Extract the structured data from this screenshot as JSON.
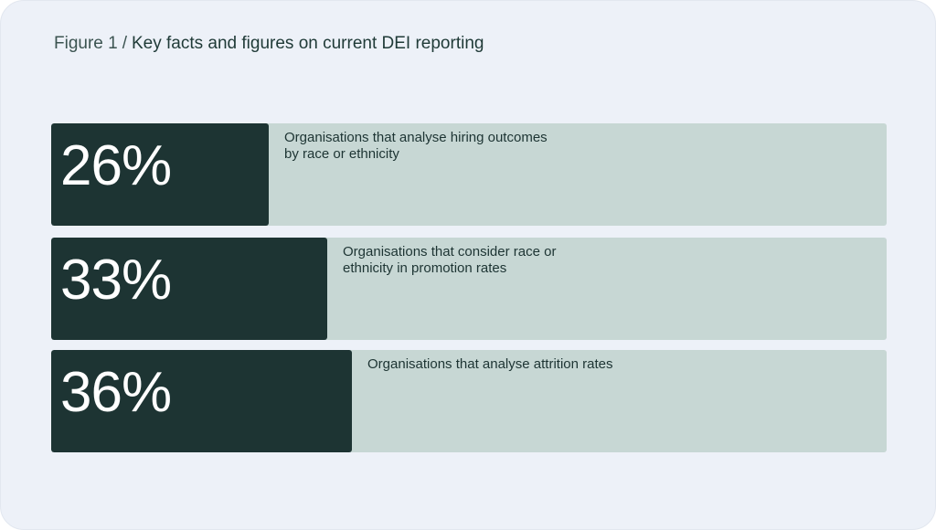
{
  "title": {
    "prefix": "Figure 1",
    "separator": "/",
    "text": "Key facts and figures on current DEI reporting"
  },
  "colors": {
    "background": "#edf1f8",
    "bar_fill": "#1d3433",
    "track_fill": "#c7d7d4",
    "text_dark": "#1d3433"
  },
  "chart_data": {
    "type": "bar",
    "orientation": "horizontal",
    "xlim": [
      0,
      100
    ],
    "items": [
      {
        "display": "26%",
        "value": 26,
        "label": "Organisations that analyse hiring outcomes by race or ethnicity"
      },
      {
        "display": "33%",
        "value": 33,
        "label": "Organisations that consider race or ethnicity in promotion rates"
      },
      {
        "display": "36%",
        "value": 36,
        "label": "Organisations that analyse attrition rates"
      }
    ]
  }
}
